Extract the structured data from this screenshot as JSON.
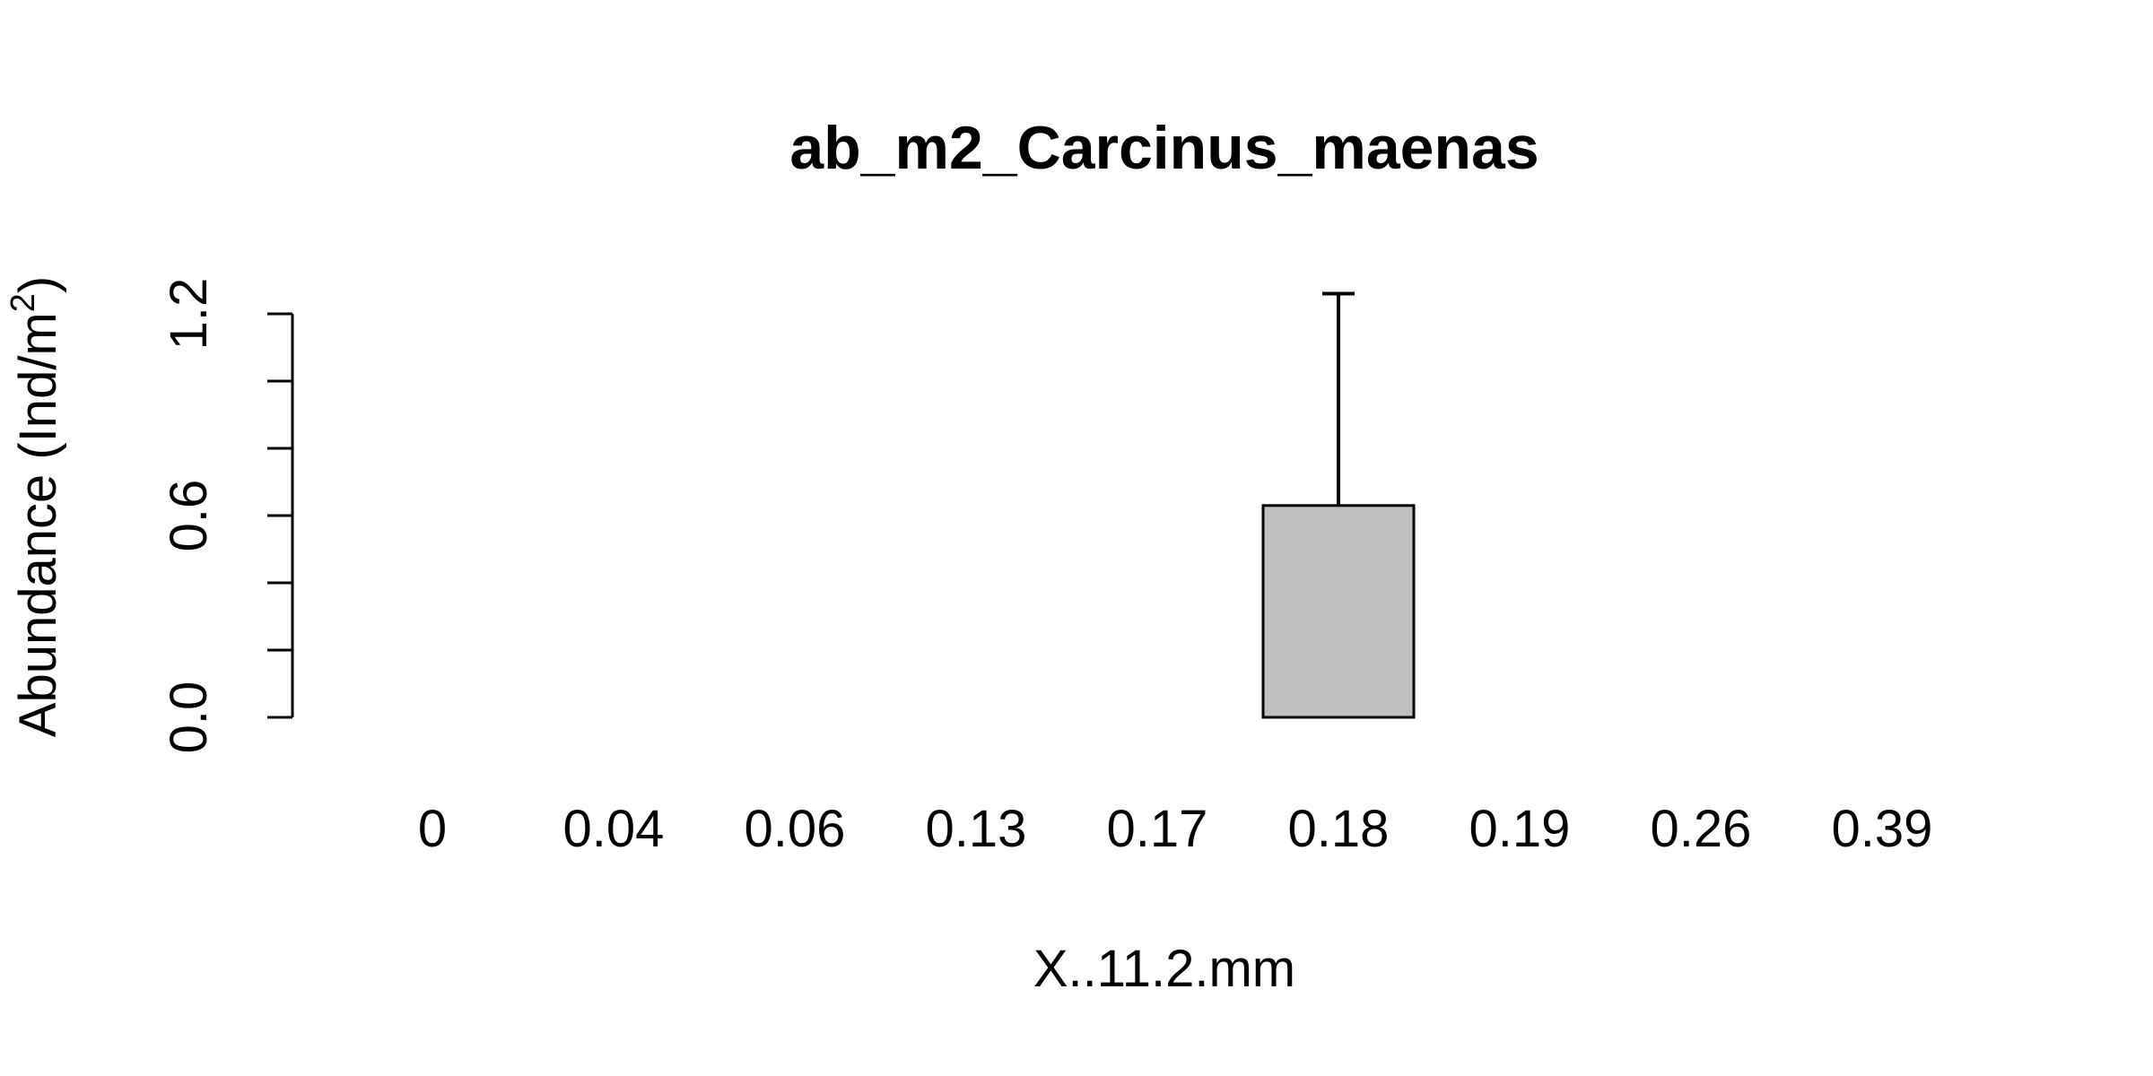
{
  "chart_data": {
    "type": "bar",
    "title": "ab_m2_Carcinus_maenas",
    "xlabel": "X..11.2.mm",
    "ylabel": "Abundance (Ind/m",
    "ylabel_superscript": "2",
    "ylabel_suffix": ")",
    "categories": [
      "0",
      "0.04",
      "0.06",
      "0.13",
      "0.17",
      "0.18",
      "0.19",
      "0.26",
      "0.39"
    ],
    "values": [
      0,
      0,
      0,
      0,
      0,
      0.63,
      0,
      0,
      0
    ],
    "error_upper": [
      0,
      0,
      0,
      0,
      0,
      1.26,
      0,
      0,
      0
    ],
    "ylim": [
      0,
      1.2
    ],
    "yticks": [
      0,
      0.2,
      0.4,
      0.6,
      0.8,
      1.0,
      1.2
    ],
    "ytick_labels": [
      "0.0",
      "0.6",
      "1.2"
    ],
    "ytick_labeled_values": [
      0,
      0.6,
      1.2
    ],
    "bar_color": "#bebebe",
    "grid": false,
    "legend": "none"
  }
}
